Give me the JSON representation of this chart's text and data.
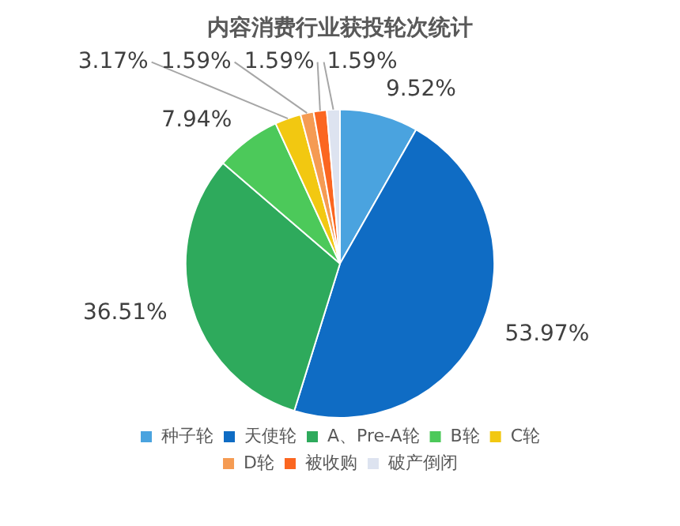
{
  "chart_data": {
    "type": "pie",
    "title": "内容消费行业获投轮次统计",
    "categories": [
      "种子轮",
      "天使轮",
      "A、Pre-A轮",
      "B轮",
      "C轮",
      "D轮",
      "被收购",
      "破产倒闭"
    ],
    "values": [
      9.52,
      53.97,
      36.51,
      7.94,
      3.17,
      1.59,
      1.59,
      1.59
    ],
    "value_labels": [
      "9.52%",
      "53.97%",
      "36.51%",
      "7.94%",
      "3.17%",
      "1.59%",
      "1.59%",
      "1.59%"
    ],
    "colors": [
      "#4aa3df",
      "#0f6cc4",
      "#2eaa5c",
      "#4cc95a",
      "#f2c811",
      "#f59b53",
      "#fb6620",
      "#dde3f0"
    ],
    "legend": "bottom"
  }
}
